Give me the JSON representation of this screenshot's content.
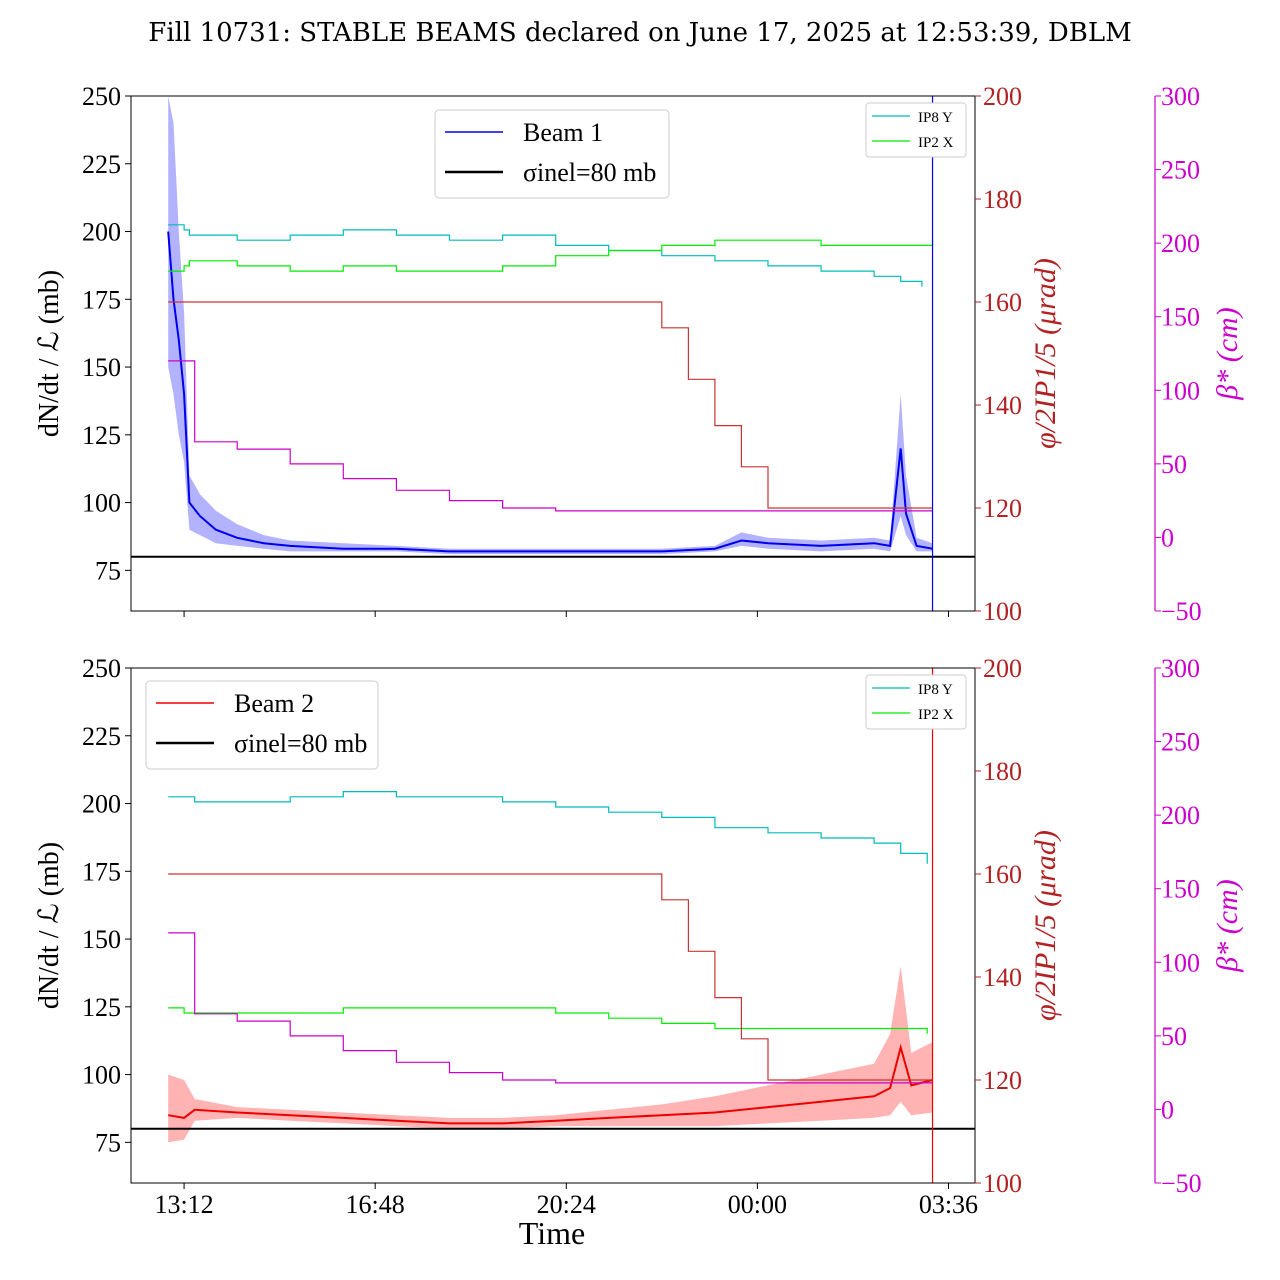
{
  "figure": {
    "title": "Fill 10731: STABLE BEAMS declared on June 17, 2025 at 12:53:39, DBLM",
    "xlabel": "Time",
    "ylabel_main": "dN/dt / ℒ (mb)",
    "ylabel_right1": "φ/2IP1/5 (μrad)",
    "ylabel_right2": "β* (cm)",
    "x_ticks": [
      "13:12",
      "16:48",
      "20:24",
      "00:00",
      "03:36"
    ],
    "colors": {
      "beam1": "#0000ee",
      "beam1_band": "#7f7fff",
      "beam2": "#ee0000",
      "beam2_band": "#ff8080",
      "ip8": "#00bbbb",
      "ip2": "#00ee00",
      "crossing": "#cc3333",
      "betastar": "#cc00cc",
      "right1_axis": "#b22222",
      "right2_axis": "#cc00cc"
    }
  },
  "chart_data": [
    {
      "type": "line",
      "panel": "top",
      "legend_main": [
        {
          "label": "Beam 1",
          "color": "#0000ee"
        },
        {
          "label": "σinel=80 mb",
          "color": "#000000"
        }
      ],
      "legend_small": [
        {
          "label": "IP8 Y",
          "color": "#00bbbb"
        },
        {
          "label": "IP2 X",
          "color": "#00ee00"
        }
      ],
      "x_axis": {
        "unit": "hours since 13:12",
        "ticks": [
          0,
          3.6,
          7.2,
          10.8,
          14.4
        ],
        "tick_labels": [
          "13:12",
          "16:48",
          "20:24",
          "00:00",
          "03:36"
        ],
        "range": [
          -1.0,
          14.9
        ]
      },
      "y_left": {
        "range": [
          60,
          250
        ],
        "ticks": [
          75,
          100,
          125,
          150,
          175,
          200,
          225,
          250
        ]
      },
      "y_right1": {
        "range": [
          100,
          200
        ],
        "ticks": [
          100,
          120,
          140,
          160,
          180,
          200
        ]
      },
      "y_right2": {
        "range": [
          -50,
          300
        ],
        "ticks": [
          -50,
          0,
          50,
          100,
          150,
          200,
          250,
          300
        ]
      },
      "reference_line": {
        "value": 80,
        "label": "σinel=80 mb"
      },
      "end_marker_x": 14.1,
      "series": [
        {
          "name": "Beam 1",
          "axis": "left",
          "color": "#0000ee",
          "x": [
            -0.3,
            -0.2,
            -0.1,
            0.0,
            0.1,
            0.3,
            0.6,
            1.0,
            1.5,
            2.0,
            3.0,
            4.0,
            5.0,
            6.0,
            7.0,
            8.0,
            9.0,
            10.0,
            10.5,
            11.0,
            12.0,
            13.0,
            13.3,
            13.5,
            13.6,
            13.8,
            14.1
          ],
          "y": [
            200,
            175,
            160,
            140,
            100,
            95,
            90,
            87,
            85,
            84,
            83,
            83,
            82,
            82,
            82,
            82,
            82,
            83,
            86,
            85,
            84,
            85,
            84,
            120,
            96,
            84,
            83
          ],
          "band_lower": [
            150,
            140,
            125,
            115,
            90,
            88,
            85,
            84,
            83,
            82,
            82,
            82,
            81,
            81,
            81,
            81,
            81,
            82,
            84,
            83,
            82,
            83,
            82,
            95,
            88,
            82,
            82
          ],
          "band_upper": [
            250,
            240,
            200,
            170,
            110,
            103,
            97,
            92,
            88,
            86,
            85,
            84,
            83,
            83,
            83,
            83,
            83,
            84,
            89,
            87,
            86,
            87,
            86,
            140,
            110,
            87,
            85
          ]
        },
        {
          "name": "IP8 Y",
          "axis": "right1",
          "color": "#00bbbb",
          "x": [
            -0.3,
            0.0,
            0.1,
            1.0,
            2.0,
            3.0,
            4.0,
            5.0,
            6.0,
            7.0,
            8.0,
            9.0,
            10.0,
            11.0,
            12.0,
            13.0,
            13.5,
            13.9
          ],
          "y": [
            175,
            174,
            173,
            172,
            173,
            174,
            173,
            172,
            173,
            171,
            170,
            169,
            168,
            167,
            166,
            165,
            164,
            163
          ]
        },
        {
          "name": "IP2 X",
          "axis": "right1",
          "color": "#00ee00",
          "x": [
            -0.3,
            0.0,
            0.1,
            1.0,
            2.0,
            3.0,
            4.0,
            5.0,
            6.0,
            7.0,
            8.0,
            9.0,
            10.0,
            11.0,
            12.0,
            13.0,
            14.0,
            14.1
          ],
          "y": [
            166,
            167,
            168,
            167,
            166,
            167,
            166,
            166,
            167,
            169,
            170,
            171,
            172,
            172,
            171,
            171,
            171,
            172
          ]
        },
        {
          "name": "crossing angle",
          "axis": "right1",
          "color": "#cc3333",
          "x": [
            -0.3,
            8.6,
            9.0,
            9.5,
            10.0,
            10.5,
            11.0,
            14.1
          ],
          "y": [
            160,
            160,
            155,
            145,
            136,
            128,
            120,
            120
          ]
        },
        {
          "name": "beta star",
          "axis": "right2",
          "color": "#cc00cc",
          "x": [
            -0.3,
            0.1,
            0.2,
            1.0,
            2.0,
            3.0,
            4.0,
            5.0,
            6.0,
            7.0,
            8.0,
            14.1
          ],
          "y": [
            120,
            120,
            65,
            60,
            50,
            40,
            32,
            25,
            20,
            18,
            18,
            18
          ]
        }
      ]
    },
    {
      "type": "line",
      "panel": "bottom",
      "legend_main": [
        {
          "label": "Beam 2",
          "color": "#ee0000"
        },
        {
          "label": "σinel=80 mb",
          "color": "#000000"
        }
      ],
      "legend_small": [
        {
          "label": "IP8 Y",
          "color": "#00bbbb"
        },
        {
          "label": "IP2 X",
          "color": "#00ee00"
        }
      ],
      "x_axis": {
        "unit": "hours since 13:12",
        "ticks": [
          0,
          3.6,
          7.2,
          10.8,
          14.4
        ],
        "tick_labels": [
          "13:12",
          "16:48",
          "20:24",
          "00:00",
          "03:36"
        ],
        "range": [
          -1.0,
          14.9
        ]
      },
      "y_left": {
        "range": [
          60,
          250
        ],
        "ticks": [
          75,
          100,
          125,
          150,
          175,
          200,
          225,
          250
        ]
      },
      "y_right1": {
        "range": [
          100,
          200
        ],
        "ticks": [
          100,
          120,
          140,
          160,
          180,
          200
        ]
      },
      "y_right2": {
        "range": [
          -50,
          300
        ],
        "ticks": [
          -50,
          0,
          50,
          100,
          150,
          200,
          250,
          300
        ]
      },
      "reference_line": {
        "value": 80,
        "label": "σinel=80 mb"
      },
      "end_marker_x": 14.1,
      "series": [
        {
          "name": "Beam 2",
          "axis": "left",
          "color": "#ee0000",
          "x": [
            -0.3,
            0.0,
            0.2,
            1.0,
            2.0,
            3.0,
            4.0,
            5.0,
            6.0,
            7.0,
            8.0,
            9.0,
            10.0,
            11.0,
            12.0,
            13.0,
            13.3,
            13.5,
            13.7,
            14.1
          ],
          "y": [
            85,
            84,
            87,
            86,
            85,
            84,
            83,
            82,
            82,
            83,
            84,
            85,
            86,
            88,
            90,
            92,
            95,
            110,
            96,
            98
          ],
          "band_lower": [
            75,
            76,
            83,
            84,
            83,
            82,
            81,
            80,
            80,
            81,
            81,
            81,
            81,
            82,
            83,
            84,
            85,
            90,
            85,
            86
          ],
          "band_upper": [
            100,
            98,
            91,
            88,
            87,
            86,
            85,
            84,
            84,
            85,
            87,
            89,
            92,
            96,
            100,
            104,
            115,
            140,
            108,
            112
          ]
        },
        {
          "name": "IP8 Y",
          "axis": "right1",
          "color": "#00bbbb",
          "x": [
            -0.3,
            0.1,
            0.2,
            1.0,
            2.0,
            3.0,
            4.0,
            5.0,
            6.0,
            7.0,
            8.0,
            9.0,
            10.0,
            11.0,
            12.0,
            13.0,
            13.5,
            14.0
          ],
          "y": [
            175,
            175,
            174,
            174,
            175,
            176,
            175,
            175,
            174,
            173,
            172,
            171,
            169,
            168,
            167,
            166,
            164,
            162
          ]
        },
        {
          "name": "IP2 X",
          "axis": "right1",
          "color": "#00ee00",
          "x": [
            -0.3,
            0.0,
            0.1,
            1.0,
            2.0,
            3.0,
            4.0,
            5.0,
            6.0,
            7.0,
            8.0,
            9.0,
            10.0,
            11.0,
            12.0,
            13.0,
            14.0
          ],
          "y": [
            134,
            133,
            133,
            133,
            133,
            134,
            134,
            134,
            134,
            133,
            132,
            131,
            130,
            130,
            130,
            130,
            129
          ]
        },
        {
          "name": "crossing angle",
          "axis": "right1",
          "color": "#cc3333",
          "x": [
            -0.3,
            8.6,
            9.0,
            9.5,
            10.0,
            10.5,
            11.0,
            14.1
          ],
          "y": [
            160,
            160,
            155,
            145,
            136,
            128,
            120,
            120
          ]
        },
        {
          "name": "beta star",
          "axis": "right2",
          "color": "#cc00cc",
          "x": [
            -0.3,
            0.1,
            0.2,
            1.0,
            2.0,
            3.0,
            4.0,
            5.0,
            6.0,
            7.0,
            14.1
          ],
          "y": [
            120,
            120,
            65,
            60,
            50,
            40,
            32,
            25,
            20,
            18,
            18
          ]
        }
      ]
    }
  ]
}
